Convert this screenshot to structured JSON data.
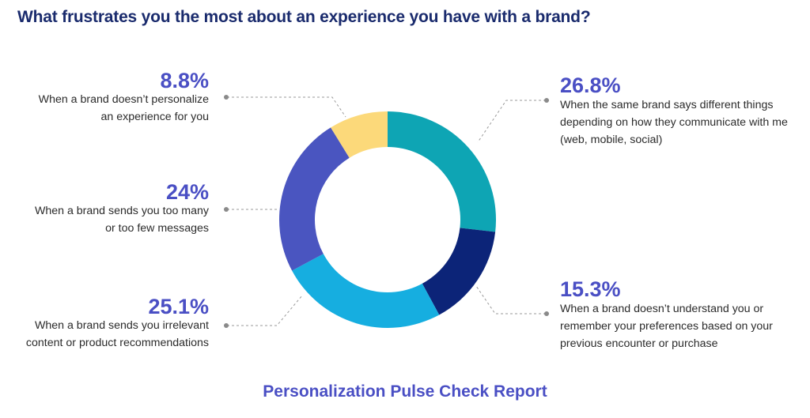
{
  "title": "What frustrates you the most about an experience you have with a brand?",
  "footer": "Personalization Pulse Check Report",
  "chart_data": {
    "type": "pie",
    "variant": "donut",
    "title": "What frustrates you the most about an experience you have with a brand?",
    "slices": [
      {
        "value_label": "26.8%",
        "value": 26.8,
        "label": "When the same brand says different things depending on how they communicate with me (web, mobile, social)",
        "color": "#0ea5b4"
      },
      {
        "value_label": "15.3%",
        "value": 15.3,
        "label": "When a brand doesn’t understand you or remember your preferences based on your previous encounter or purchase",
        "color": "#0c2478"
      },
      {
        "value_label": "25.1%",
        "value": 25.1,
        "label": "When a brand sends you irrelevant content or product recommendations",
        "color": "#16aee0"
      },
      {
        "value_label": "24%",
        "value": 24,
        "label": "When a brand sends you too many or too few messages",
        "color": "#4a55c0"
      },
      {
        "value_label": "8.8%",
        "value": 8.8,
        "label": "When a brand doesn’t personalize an experience for you",
        "color": "#fcd97a"
      }
    ]
  },
  "labels": {
    "s0": {
      "pct": "26.8%",
      "lines": [
        "When the same brand says different things",
        "depending on how they communicate with me",
        "(web, mobile, social)"
      ]
    },
    "s1": {
      "pct": "15.3%",
      "lines": [
        "When a brand doesn’t understand you or",
        "remember your preferences based on your",
        "previous encounter or purchase"
      ]
    },
    "s2": {
      "pct": "25.1%",
      "lines": [
        "When a brand sends you irrelevant",
        "content or product recommendations"
      ]
    },
    "s3": {
      "pct": "24%",
      "lines": [
        "When a brand sends you too many",
        "or too few messages"
      ]
    },
    "s4": {
      "pct": "8.8%",
      "lines": [
        "When a brand doesn’t personalize",
        "an experience for you"
      ]
    }
  }
}
